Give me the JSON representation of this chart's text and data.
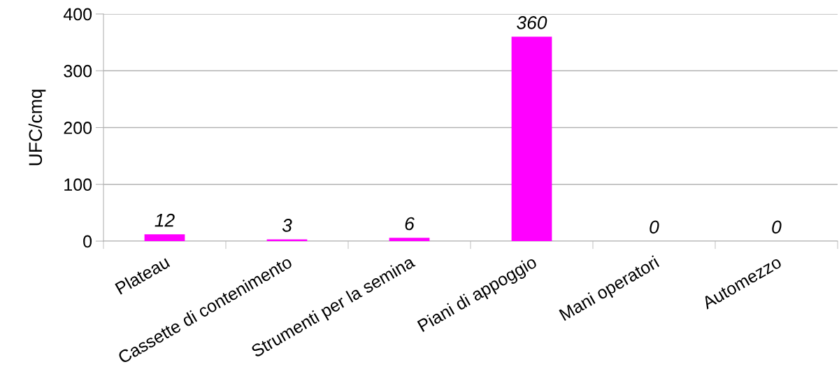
{
  "chart_data": {
    "type": "bar",
    "ylabel": "UFC/cmq",
    "categories": [
      "Plateau",
      "Cassette di contenimento",
      "Strumenti per la semina",
      "Piani di appoggio",
      "Mani operatori",
      "Automezzo"
    ],
    "values": [
      12,
      3,
      6,
      360,
      0,
      0
    ],
    "color": "#ff00ff",
    "ylim": [
      0,
      400
    ],
    "yticks": [
      0,
      100,
      200,
      300,
      400
    ],
    "grid": "y",
    "data_labels": true
  }
}
